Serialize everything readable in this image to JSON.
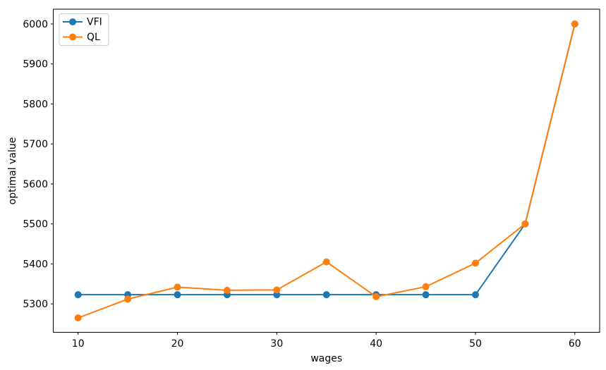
{
  "figure": {
    "background": "#ffffff"
  },
  "chart_data": {
    "type": "line",
    "title": "",
    "xlabel": "wages",
    "ylabel": "optimal value",
    "x": [
      10,
      15,
      20,
      25,
      30,
      35,
      40,
      45,
      50,
      55,
      60
    ],
    "series": [
      {
        "name": "VFI",
        "color": "#1f77b4",
        "values": [
          5323,
          5323,
          5323,
          5323,
          5323,
          5323,
          5323,
          5323,
          5323,
          5500,
          6000
        ]
      },
      {
        "name": "QL",
        "color": "#ff7f0e",
        "values": [
          5265,
          5312,
          5342,
          5334,
          5335,
          5405,
          5318,
          5343,
          5402,
          5500,
          6000
        ]
      }
    ],
    "xticks": [
      10,
      20,
      30,
      40,
      50,
      60
    ],
    "yticks": [
      5300,
      5400,
      5500,
      5600,
      5700,
      5800,
      5900,
      6000
    ],
    "xlim": [
      7.5,
      62.5
    ],
    "ylim": [
      5229,
      6037
    ],
    "grid": false,
    "legend": {
      "position": "upper left",
      "entries": [
        "VFI",
        "QL"
      ]
    },
    "marker": "circle",
    "spine_color": "#000000",
    "legend_border_color": "#cccccc"
  }
}
